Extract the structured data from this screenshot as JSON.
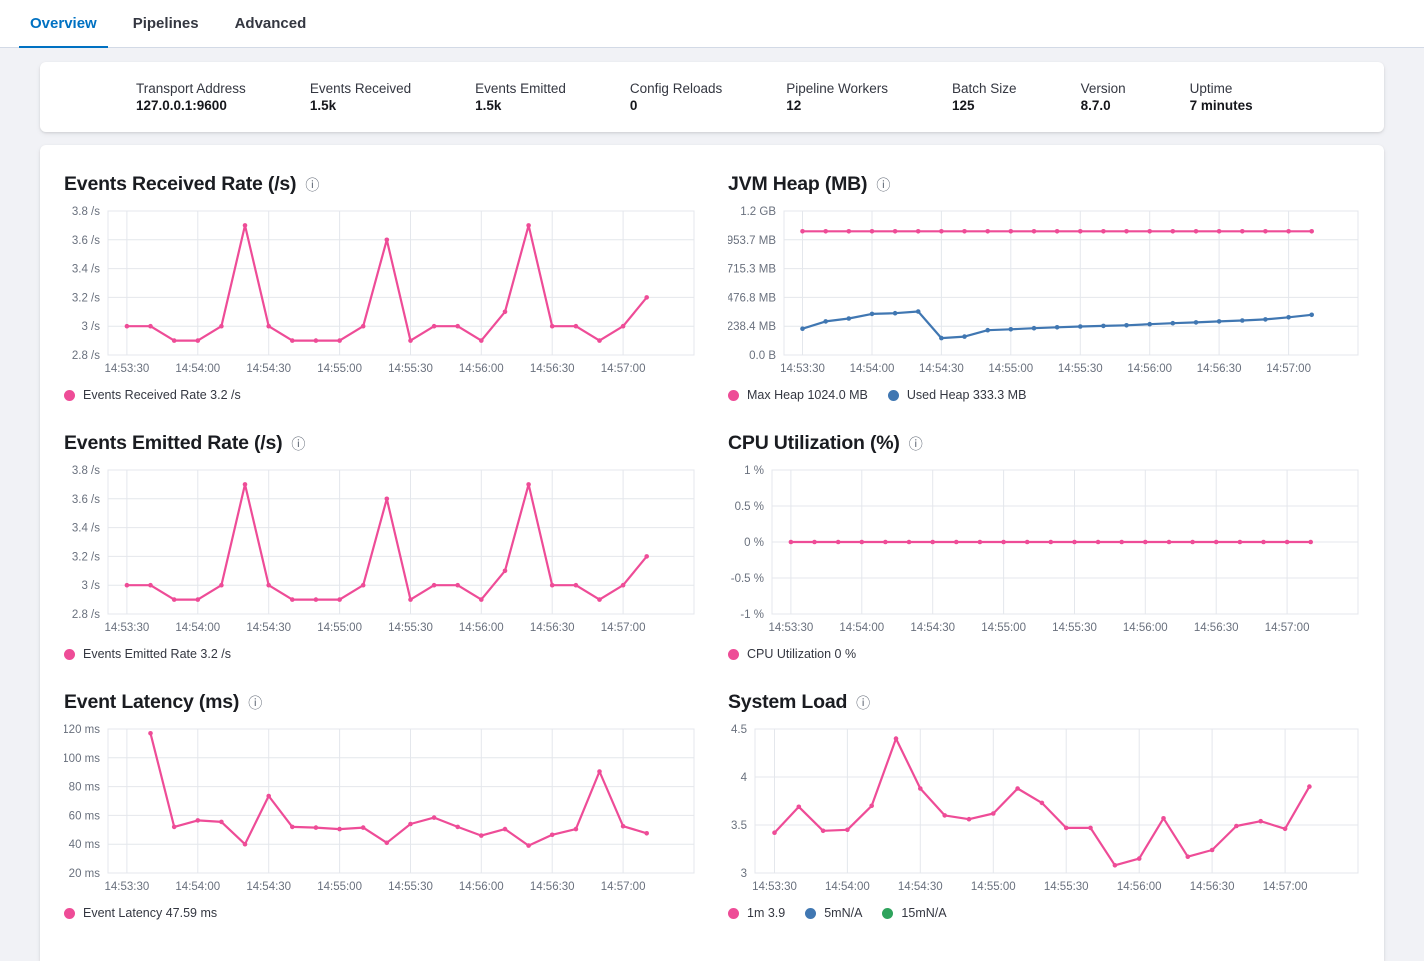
{
  "tabs": [
    {
      "label": "Overview",
      "active": true
    },
    {
      "label": "Pipelines",
      "active": false
    },
    {
      "label": "Advanced",
      "active": false
    }
  ],
  "summary": {
    "items": [
      {
        "label": "Transport Address",
        "value": "127.0.0.1:9600"
      },
      {
        "label": "Events Received",
        "value": "1.5k"
      },
      {
        "label": "Events Emitted",
        "value": "1.5k"
      },
      {
        "label": "Config Reloads",
        "value": "0"
      },
      {
        "label": "Pipeline Workers",
        "value": "12"
      },
      {
        "label": "Batch Size",
        "value": "125"
      },
      {
        "label": "Version",
        "value": "8.7.0"
      },
      {
        "label": "Uptime",
        "value": "7 minutes"
      }
    ]
  },
  "icons": {
    "info": "ⓘ"
  },
  "colors": {
    "accent_pink": "#EE4C97",
    "accent_blue": "#4077B2",
    "accent_green": "#2EA35C",
    "tab_active": "#0071C2",
    "grid": "#E4E7EC",
    "axis_text": "#69707D",
    "title_text": "#1A1C21",
    "label_text": "#343741",
    "page_bg": "#F1F2F6"
  },
  "chart_data": [
    {
      "type": "line",
      "title": "Events Received Rate (/s)",
      "x_tick_labels": [
        "14:53:30",
        "14:54:00",
        "14:54:30",
        "14:55:00",
        "14:55:30",
        "14:56:00",
        "14:56:30",
        "14:57:00"
      ],
      "x_tick_seconds": [
        0,
        30,
        60,
        90,
        120,
        150,
        180,
        210
      ],
      "x_domain_seconds": [
        -8,
        240
      ],
      "y_domain": [
        2.8,
        3.8
      ],
      "y_ticks": [
        {
          "label": "2.8 /s",
          "value": 2.8
        },
        {
          "label": "3 /s",
          "value": 3
        },
        {
          "label": "3.2 /s",
          "value": 3.2
        },
        {
          "label": "3.4 /s",
          "value": 3.4
        },
        {
          "label": "3.6 /s",
          "value": 3.6
        },
        {
          "label": "3.8 /s",
          "value": 3.8
        }
      ],
      "series": [
        {
          "name": "Events Received Rate",
          "color": "accent_pink",
          "t_start": 0,
          "t_step": 10,
          "values": [
            3,
            3,
            2.9,
            2.9,
            3,
            3.7,
            3,
            2.9,
            2.9,
            2.9,
            3,
            3.6,
            2.9,
            3,
            3,
            2.9,
            3.1,
            3.7,
            3,
            3,
            2.9,
            3,
            3.2
          ]
        }
      ],
      "legend": [
        {
          "color": "accent_pink",
          "label": "Events Received Rate 3.2 /s"
        }
      ]
    },
    {
      "type": "line",
      "title": "JVM Heap (MB)",
      "x_tick_labels": [
        "14:53:30",
        "14:54:00",
        "14:54:30",
        "14:55:00",
        "14:55:30",
        "14:56:00",
        "14:56:30",
        "14:57:00"
      ],
      "x_tick_seconds": [
        0,
        30,
        60,
        90,
        120,
        150,
        180,
        210
      ],
      "x_domain_seconds": [
        -8,
        240
      ],
      "y_domain": [
        0,
        1192.1
      ],
      "y_ticks": [
        {
          "label": "0.0 B",
          "value": 0
        },
        {
          "label": "238.4 MB",
          "value": 238.4
        },
        {
          "label": "476.8 MB",
          "value": 476.8
        },
        {
          "label": "715.3 MB",
          "value": 715.3
        },
        {
          "label": "953.7 MB",
          "value": 953.7
        },
        {
          "label": "1.2 GB",
          "value": 1192.1
        }
      ],
      "series": [
        {
          "name": "Max Heap",
          "color": "accent_pink",
          "t_start": 0,
          "t_step": 10,
          "values": [
            1024,
            1024,
            1024,
            1024,
            1024,
            1024,
            1024,
            1024,
            1024,
            1024,
            1024,
            1024,
            1024,
            1024,
            1024,
            1024,
            1024,
            1024,
            1024,
            1024,
            1024,
            1024,
            1024
          ]
        },
        {
          "name": "Used Heap",
          "color": "accent_blue",
          "t_start": 0,
          "t_step": 10,
          "values": [
            218,
            278,
            302,
            340,
            346,
            360,
            140,
            152,
            205,
            213,
            222,
            229,
            236,
            241,
            246,
            255,
            263,
            270,
            278,
            286,
            295,
            312,
            333
          ]
        }
      ],
      "legend": [
        {
          "color": "accent_pink",
          "label": "Max Heap 1024.0 MB"
        },
        {
          "color": "accent_blue",
          "label": "Used Heap 333.3 MB"
        }
      ]
    },
    {
      "type": "line",
      "title": "Events Emitted Rate (/s)",
      "x_tick_labels": [
        "14:53:30",
        "14:54:00",
        "14:54:30",
        "14:55:00",
        "14:55:30",
        "14:56:00",
        "14:56:30",
        "14:57:00"
      ],
      "x_tick_seconds": [
        0,
        30,
        60,
        90,
        120,
        150,
        180,
        210
      ],
      "x_domain_seconds": [
        -8,
        240
      ],
      "y_domain": [
        2.8,
        3.8
      ],
      "y_ticks": [
        {
          "label": "2.8 /s",
          "value": 2.8
        },
        {
          "label": "3 /s",
          "value": 3
        },
        {
          "label": "3.2 /s",
          "value": 3.2
        },
        {
          "label": "3.4 /s",
          "value": 3.4
        },
        {
          "label": "3.6 /s",
          "value": 3.6
        },
        {
          "label": "3.8 /s",
          "value": 3.8
        }
      ],
      "series": [
        {
          "name": "Events Emitted Rate",
          "color": "accent_pink",
          "t_start": 0,
          "t_step": 10,
          "values": [
            3,
            3,
            2.9,
            2.9,
            3,
            3.7,
            3,
            2.9,
            2.9,
            2.9,
            3,
            3.6,
            2.9,
            3,
            3,
            2.9,
            3.1,
            3.7,
            3,
            3,
            2.9,
            3,
            3.2
          ]
        }
      ],
      "legend": [
        {
          "color": "accent_pink",
          "label": "Events Emitted Rate 3.2 /s"
        }
      ]
    },
    {
      "type": "line",
      "title": "CPU Utilization (%)",
      "x_tick_labels": [
        "14:53:30",
        "14:54:00",
        "14:54:30",
        "14:55:00",
        "14:55:30",
        "14:56:00",
        "14:56:30",
        "14:57:00"
      ],
      "x_tick_seconds": [
        0,
        30,
        60,
        90,
        120,
        150,
        180,
        210
      ],
      "x_domain_seconds": [
        -8,
        240
      ],
      "y_domain": [
        -1,
        1
      ],
      "y_ticks": [
        {
          "label": "-1 %",
          "value": -1
        },
        {
          "label": "-0.5 %",
          "value": -0.5
        },
        {
          "label": "0 %",
          "value": 0
        },
        {
          "label": "0.5 %",
          "value": 0.5
        },
        {
          "label": "1 %",
          "value": 1
        }
      ],
      "series": [
        {
          "name": "CPU Utilization",
          "color": "accent_pink",
          "t_start": 0,
          "t_step": 10,
          "values": [
            0,
            0,
            0,
            0,
            0,
            0,
            0,
            0,
            0,
            0,
            0,
            0,
            0,
            0,
            0,
            0,
            0,
            0,
            0,
            0,
            0,
            0,
            0
          ]
        }
      ],
      "legend": [
        {
          "color": "accent_pink",
          "label": "CPU Utilization 0 %"
        }
      ]
    },
    {
      "type": "line",
      "title": "Event Latency (ms)",
      "x_tick_labels": [
        "14:53:30",
        "14:54:00",
        "14:54:30",
        "14:55:00",
        "14:55:30",
        "14:56:00",
        "14:56:30",
        "14:57:00"
      ],
      "x_tick_seconds": [
        0,
        30,
        60,
        90,
        120,
        150,
        180,
        210
      ],
      "x_domain_seconds": [
        -8,
        240
      ],
      "y_domain": [
        20,
        120
      ],
      "y_ticks": [
        {
          "label": "20 ms",
          "value": 20
        },
        {
          "label": "40 ms",
          "value": 40
        },
        {
          "label": "60 ms",
          "value": 60
        },
        {
          "label": "80 ms",
          "value": 80
        },
        {
          "label": "100 ms",
          "value": 100
        },
        {
          "label": "120 ms",
          "value": 120
        }
      ],
      "series": [
        {
          "name": "Event Latency",
          "color": "accent_pink",
          "t_start": 10,
          "t_step": 10,
          "values": [
            117,
            52,
            56.5,
            55.5,
            40,
            73.5,
            52,
            51.5,
            50.5,
            51.5,
            41,
            54,
            58.5,
            52,
            46,
            50.5,
            39,
            46.5,
            50.5,
            90.5,
            52.5,
            47.59
          ]
        }
      ],
      "legend": [
        {
          "color": "accent_pink",
          "label": "Event Latency 47.59 ms"
        }
      ]
    },
    {
      "type": "line",
      "title": "System Load",
      "x_tick_labels": [
        "14:53:30",
        "14:54:00",
        "14:54:30",
        "14:55:00",
        "14:55:30",
        "14:56:00",
        "14:56:30",
        "14:57:00"
      ],
      "x_tick_seconds": [
        0,
        30,
        60,
        90,
        120,
        150,
        180,
        210
      ],
      "x_domain_seconds": [
        -8,
        240
      ],
      "y_domain": [
        3,
        4.5
      ],
      "y_ticks": [
        {
          "label": "3",
          "value": 3
        },
        {
          "label": "3.5",
          "value": 3.5
        },
        {
          "label": "4",
          "value": 4
        },
        {
          "label": "4.5",
          "value": 4.5
        }
      ],
      "series": [
        {
          "name": "1m",
          "color": "accent_pink",
          "t_start": 0,
          "t_step": 10,
          "values": [
            3.42,
            3.69,
            3.44,
            3.45,
            3.7,
            4.4,
            3.88,
            3.6,
            3.56,
            3.62,
            3.88,
            3.73,
            3.47,
            3.47,
            3.08,
            3.15,
            3.57,
            3.17,
            3.24,
            3.49,
            3.54,
            3.46,
            3.9
          ]
        }
      ],
      "legend": [
        {
          "color": "accent_pink",
          "label": "1m 3.9"
        },
        {
          "color": "accent_blue",
          "label": "5mN/A"
        },
        {
          "color": "accent_green",
          "label": "15mN/A"
        }
      ]
    }
  ]
}
